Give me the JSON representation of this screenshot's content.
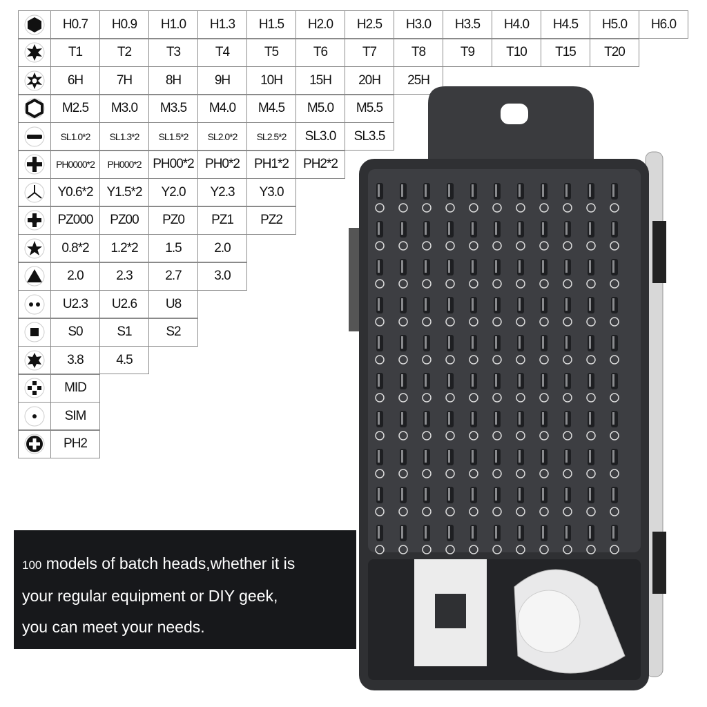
{
  "spec_table": [
    {
      "icon": "hex-icon",
      "sizes": [
        "H0.7",
        "H0.9",
        "H1.0",
        "H1.3",
        "H1.5",
        "H2.0",
        "H2.5",
        "H3.0",
        "H3.5",
        "H4.0",
        "H4.5",
        "H5.0",
        "H6.0"
      ]
    },
    {
      "icon": "torx-icon",
      "sizes": [
        "T1",
        "T2",
        "T3",
        "T4",
        "T5",
        "T6",
        "T7",
        "T8",
        "T9",
        "T10",
        "T15",
        "T20"
      ]
    },
    {
      "icon": "torx-hole-icon",
      "sizes": [
        "6H",
        "7H",
        "8H",
        "9H",
        "10H",
        "15H",
        "20H",
        "25H"
      ]
    },
    {
      "icon": "hex-socket-icon",
      "sizes": [
        "M2.5",
        "M3.0",
        "M3.5",
        "M4.0",
        "M4.5",
        "M5.0",
        "M5.5"
      ]
    },
    {
      "icon": "slotted-icon",
      "sizes": [
        "SL1.0*2",
        "SL1.3*2",
        "SL1.5*2",
        "SL2.0*2",
        "SL2.5*2",
        "SL3.0",
        "SL3.5"
      ]
    },
    {
      "icon": "phillips-icon",
      "sizes": [
        "PH0000*2",
        "PH000*2",
        "PH00*2",
        "PH0*2",
        "PH1*2",
        "PH2*2"
      ]
    },
    {
      "icon": "tri-wing-icon",
      "sizes": [
        "Y0.6*2",
        "Y1.5*2",
        "Y2.0",
        "Y2.3",
        "Y3.0"
      ]
    },
    {
      "icon": "pozidriv-icon",
      "sizes": [
        "PZ000",
        "PZ00",
        "PZ0",
        "PZ1",
        "PZ2"
      ]
    },
    {
      "icon": "pentalobe-icon",
      "sizes": [
        "0.8*2",
        "1.2*2",
        "1.5",
        "2.0"
      ]
    },
    {
      "icon": "triangle-icon",
      "sizes": [
        "2.0",
        "2.3",
        "2.7",
        "3.0"
      ]
    },
    {
      "icon": "u-shape-icon",
      "sizes": [
        "U2.3",
        "U2.6",
        "U8"
      ]
    },
    {
      "icon": "square-icon",
      "sizes": [
        "S0",
        "S1",
        "S2"
      ]
    },
    {
      "icon": "six-point-icon",
      "sizes": [
        "3.8",
        "4.5"
      ]
    },
    {
      "icon": "mid-icon",
      "sizes": [
        "MID"
      ]
    },
    {
      "icon": "sim-icon",
      "sizes": [
        "SIM"
      ]
    },
    {
      "icon": "ph2-icon",
      "sizes": [
        "PH2"
      ]
    }
  ],
  "banner": {
    "lead": "100",
    "line1": " models of batch heads,whether it is",
    "line2": "your regular equipment or DIY geek,",
    "line3": "you can meet your needs."
  },
  "colors": {
    "case": "#2f3033",
    "banner": "#17181b",
    "accessory": "#e9e9ea"
  }
}
